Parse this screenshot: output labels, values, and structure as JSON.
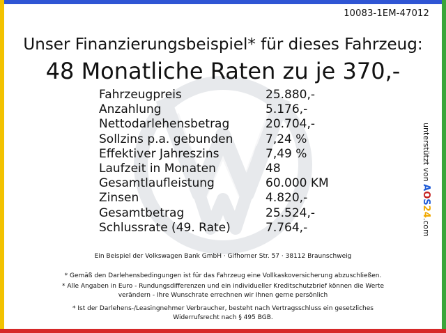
{
  "reference_code": "10083-1EM-47012",
  "headline": "Unser Finanzierungsbeispiel* für dieses Fahrzeug:",
  "subheadline": "48 Monatliche Raten zu je 370,-",
  "financing_rows": [
    {
      "label": "Fahrzeugpreis",
      "value": "25.880,-"
    },
    {
      "label": "Anzahlung",
      "value": "5.176,-"
    },
    {
      "label": "Nettodarlehensbetrag",
      "value": "20.704,-"
    },
    {
      "label": "Sollzins p.a. gebunden",
      "value": "7,24 %"
    },
    {
      "label": "Effektiver Jahreszins",
      "value": "7,49 %"
    },
    {
      "label": "Laufzeit in Monaten",
      "value": "48"
    },
    {
      "label": "Gesamtlaufleistung",
      "value": "60.000 KM"
    },
    {
      "label": "Zinsen",
      "value": "4.820,-"
    },
    {
      "label": "Gesamtbetrag",
      "value": "25.524,-"
    },
    {
      "label": "Schlussrate (49. Rate)",
      "value": "7.764,-"
    }
  ],
  "credit": {
    "prefix": "unterstützt von ",
    "brand_a": "A",
    "brand_o": "O",
    "brand_s": "S",
    "brand_24": "24",
    "suffix": ".com"
  },
  "footnotes": {
    "bank_line": "Ein Beispiel der Volkswagen Bank GmbH · Gifhorner Str. 57 · 38112 Braunschweig",
    "note1": "* Gemäß den Darlehensbedingungen ist für das Fahrzeug eine Vollkaskoversicherung abzuschließen.",
    "note2a": "* Alle Angaben in Euro - Rundungsdifferenzen und ein individueller Kreditschutzbrief können die Werte",
    "note2b": "verändern - Ihre Wunschrate errechnen wir Ihnen gerne persönlich",
    "note3a": "* Ist der Darlehens-/Leasingnehmer Verbraucher, besteht nach Vertragsschluss ein gesetzliches",
    "note3b": "Widerrufsrecht nach § 495 BGB."
  },
  "colors": {
    "top_bar": "#2f55d4",
    "left_bar": "#f2c200",
    "right_bar": "#3aa63a",
    "bottom_bar": "#d62828",
    "watermark": "#7f8a9c"
  }
}
